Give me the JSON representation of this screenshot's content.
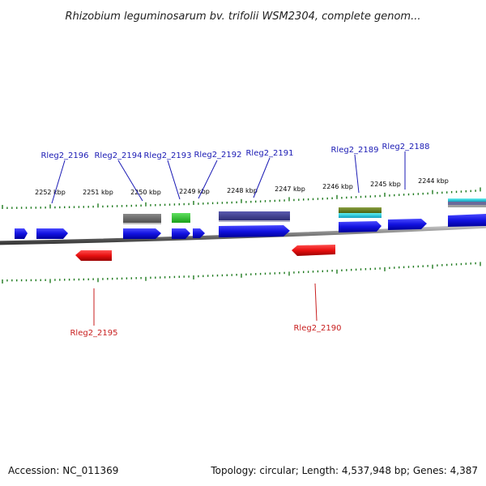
{
  "title": "Rhizobium leguminosarum bv. trifolii WSM2304, complete genom...",
  "footer": {
    "accession": "Accession: NC_011369",
    "topology": "Topology: circular; Length: 4,537,948 bp; Genes: 4,387"
  },
  "ticks": [
    "2252 kbp",
    "2251 kbp",
    "2250 kbp",
    "2249 kbp",
    "2248 kbp",
    "2247 kbp",
    "2246 kbp",
    "2245 kbp",
    "2244 kbp"
  ],
  "forward_labels": [
    "Rleg2_2196",
    "Rleg2_2194",
    "Rleg2_2193",
    "Rleg2_2192",
    "Rleg2_2191",
    "Rleg2_2189",
    "Rleg2_2188"
  ],
  "reverse_labels": [
    "Rleg2_2195",
    "Rleg2_2190"
  ],
  "colors": {
    "forward_gene": "#1414e6",
    "reverse_gene": "#e61414",
    "forward_label": "#1a1ab4",
    "reverse_label": "#c81e1e",
    "tick": "#1e7a1e",
    "backbone": "#7d7d7d"
  }
}
